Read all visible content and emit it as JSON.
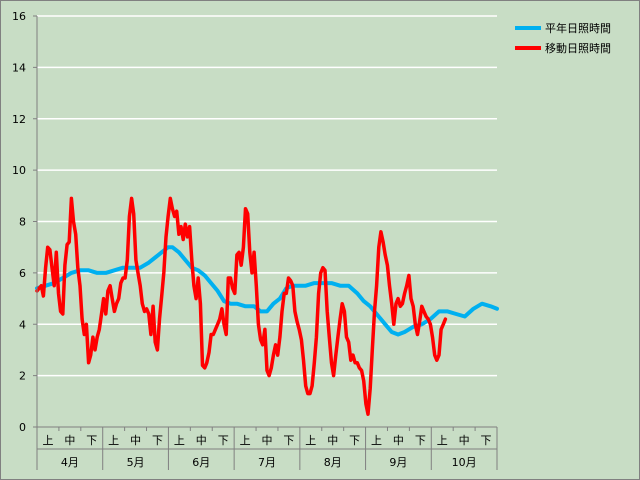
{
  "chart_data": {
    "type": "line",
    "title": "",
    "xlabel": "",
    "ylabel": "",
    "ylim": [
      0,
      16
    ],
    "yticks": [
      0,
      2,
      4,
      6,
      8,
      10,
      12,
      14,
      16
    ],
    "x_units": "days since Apr 1 (Apr 1 – Oct 31)",
    "xlim": [
      0,
      214
    ],
    "grid": true,
    "legend_position": "top-right",
    "periods": [
      "上",
      "中",
      "下"
    ],
    "months": [
      {
        "label": "4月",
        "days": 30
      },
      {
        "label": "5月",
        "days": 31
      },
      {
        "label": "6月",
        "days": 30
      },
      {
        "label": "7月",
        "days": 31
      },
      {
        "label": "8月",
        "days": 31
      },
      {
        "label": "9月",
        "days": 30
      },
      {
        "label": "10月",
        "days": 31
      }
    ],
    "series": [
      {
        "name": "平年日照時間",
        "color": "#00b0f0",
        "points": [
          [
            0,
            5.4
          ],
          [
            4,
            5.5
          ],
          [
            8,
            5.6
          ],
          [
            12,
            5.8
          ],
          [
            16,
            6.0
          ],
          [
            20,
            6.1
          ],
          [
            24,
            6.1
          ],
          [
            28,
            6.0
          ],
          [
            32,
            6.0
          ],
          [
            36,
            6.1
          ],
          [
            40,
            6.2
          ],
          [
            44,
            6.2
          ],
          [
            48,
            6.2
          ],
          [
            52,
            6.4
          ],
          [
            55,
            6.6
          ],
          [
            58,
            6.8
          ],
          [
            61,
            7.0
          ],
          [
            63,
            7.0
          ],
          [
            66,
            6.8
          ],
          [
            69,
            6.5
          ],
          [
            72,
            6.2
          ],
          [
            75,
            6.1
          ],
          [
            78,
            5.9
          ],
          [
            81,
            5.6
          ],
          [
            84,
            5.3
          ],
          [
            87,
            4.9
          ],
          [
            90,
            4.8
          ],
          [
            93,
            4.8
          ],
          [
            97,
            4.7
          ],
          [
            101,
            4.7
          ],
          [
            104,
            4.5
          ],
          [
            107,
            4.5
          ],
          [
            110,
            4.8
          ],
          [
            113,
            5.0
          ],
          [
            116,
            5.4
          ],
          [
            119,
            5.5
          ],
          [
            122,
            5.5
          ],
          [
            125,
            5.5
          ],
          [
            129,
            5.6
          ],
          [
            133,
            5.6
          ],
          [
            137,
            5.6
          ],
          [
            141,
            5.5
          ],
          [
            145,
            5.5
          ],
          [
            149,
            5.2
          ],
          [
            152,
            4.9
          ],
          [
            155,
            4.7
          ],
          [
            158,
            4.4
          ],
          [
            162,
            4.0
          ],
          [
            165,
            3.7
          ],
          [
            168,
            3.6
          ],
          [
            171,
            3.7
          ],
          [
            175,
            3.9
          ],
          [
            179,
            4.0
          ],
          [
            183,
            4.2
          ],
          [
            187,
            4.5
          ],
          [
            191,
            4.5
          ],
          [
            195,
            4.4
          ],
          [
            199,
            4.3
          ],
          [
            203,
            4.6
          ],
          [
            207,
            4.8
          ],
          [
            211,
            4.7
          ],
          [
            214,
            4.6
          ]
        ]
      },
      {
        "name": "移動日照時間",
        "color": "#ff0000",
        "points": [
          [
            0,
            5.3
          ],
          [
            1,
            5.4
          ],
          [
            2,
            5.5
          ],
          [
            3,
            5.1
          ],
          [
            4,
            6.2
          ],
          [
            5,
            7.0
          ],
          [
            6,
            6.9
          ],
          [
            7,
            6.2
          ],
          [
            8,
            5.5
          ],
          [
            9,
            6.8
          ],
          [
            10,
            5.2
          ],
          [
            11,
            4.5
          ],
          [
            12,
            4.4
          ],
          [
            13,
            6.3
          ],
          [
            14,
            7.1
          ],
          [
            15,
            7.2
          ],
          [
            16,
            8.9
          ],
          [
            17,
            8.0
          ],
          [
            18,
            7.5
          ],
          [
            19,
            6.2
          ],
          [
            20,
            5.5
          ],
          [
            21,
            4.2
          ],
          [
            22,
            3.6
          ],
          [
            23,
            4.0
          ],
          [
            24,
            2.5
          ],
          [
            25,
            2.8
          ],
          [
            26,
            3.5
          ],
          [
            27,
            3.0
          ],
          [
            28,
            3.5
          ],
          [
            29,
            3.8
          ],
          [
            30,
            4.4
          ],
          [
            31,
            5.0
          ],
          [
            32,
            4.4
          ],
          [
            33,
            5.3
          ],
          [
            34,
            5.5
          ],
          [
            35,
            5.0
          ],
          [
            36,
            4.5
          ],
          [
            37,
            4.8
          ],
          [
            38,
            5.0
          ],
          [
            39,
            5.6
          ],
          [
            40,
            5.8
          ],
          [
            41,
            5.8
          ],
          [
            42,
            6.5
          ],
          [
            43,
            8.2
          ],
          [
            44,
            8.9
          ],
          [
            45,
            8.3
          ],
          [
            46,
            6.5
          ],
          [
            47,
            6.0
          ],
          [
            48,
            5.5
          ],
          [
            49,
            4.8
          ],
          [
            50,
            4.5
          ],
          [
            51,
            4.6
          ],
          [
            52,
            4.4
          ],
          [
            53,
            3.6
          ],
          [
            54,
            4.7
          ],
          [
            55,
            3.3
          ],
          [
            56,
            3.0
          ],
          [
            57,
            4.2
          ],
          [
            58,
            5.1
          ],
          [
            59,
            6.0
          ],
          [
            60,
            7.4
          ],
          [
            61,
            8.2
          ],
          [
            62,
            8.9
          ],
          [
            63,
            8.5
          ],
          [
            64,
            8.2
          ],
          [
            65,
            8.4
          ],
          [
            66,
            7.5
          ],
          [
            67,
            7.8
          ],
          [
            68,
            7.3
          ],
          [
            69,
            7.9
          ],
          [
            70,
            7.4
          ],
          [
            71,
            7.8
          ],
          [
            72,
            6.5
          ],
          [
            73,
            5.5
          ],
          [
            74,
            5.0
          ],
          [
            75,
            5.8
          ],
          [
            76,
            4.8
          ],
          [
            77,
            2.4
          ],
          [
            78,
            2.3
          ],
          [
            79,
            2.5
          ],
          [
            80,
            2.9
          ],
          [
            81,
            3.6
          ],
          [
            82,
            3.6
          ],
          [
            83,
            3.8
          ],
          [
            84,
            4.0
          ],
          [
            85,
            4.2
          ],
          [
            86,
            4.6
          ],
          [
            87,
            4.0
          ],
          [
            88,
            3.6
          ],
          [
            89,
            5.8
          ],
          [
            90,
            5.8
          ],
          [
            91,
            5.4
          ],
          [
            92,
            5.2
          ],
          [
            93,
            6.7
          ],
          [
            94,
            6.8
          ],
          [
            95,
            6.3
          ],
          [
            96,
            7.0
          ],
          [
            97,
            8.5
          ],
          [
            98,
            8.3
          ],
          [
            99,
            6.8
          ],
          [
            100,
            6.0
          ],
          [
            101,
            6.8
          ],
          [
            102,
            5.5
          ],
          [
            103,
            4.0
          ],
          [
            104,
            3.4
          ],
          [
            105,
            3.2
          ],
          [
            106,
            3.8
          ],
          [
            107,
            2.2
          ],
          [
            108,
            2.0
          ],
          [
            109,
            2.3
          ],
          [
            110,
            2.8
          ],
          [
            111,
            3.2
          ],
          [
            112,
            2.8
          ],
          [
            113,
            3.5
          ],
          [
            114,
            4.5
          ],
          [
            115,
            5.2
          ],
          [
            116,
            5.2
          ],
          [
            117,
            5.8
          ],
          [
            118,
            5.7
          ],
          [
            119,
            5.5
          ],
          [
            120,
            4.5
          ],
          [
            121,
            4.1
          ],
          [
            122,
            3.8
          ],
          [
            123,
            3.4
          ],
          [
            124,
            2.6
          ],
          [
            125,
            1.6
          ],
          [
            126,
            1.3
          ],
          [
            127,
            1.3
          ],
          [
            128,
            1.6
          ],
          [
            129,
            2.5
          ],
          [
            130,
            3.5
          ],
          [
            131,
            5.2
          ],
          [
            132,
            6.0
          ],
          [
            133,
            6.2
          ],
          [
            134,
            6.1
          ],
          [
            135,
            4.5
          ],
          [
            136,
            3.5
          ],
          [
            137,
            2.5
          ],
          [
            138,
            2.0
          ],
          [
            139,
            2.8
          ],
          [
            140,
            3.5
          ],
          [
            141,
            4.2
          ],
          [
            142,
            4.8
          ],
          [
            143,
            4.5
          ],
          [
            144,
            3.5
          ],
          [
            145,
            3.3
          ],
          [
            146,
            2.6
          ],
          [
            147,
            2.8
          ],
          [
            148,
            2.5
          ],
          [
            149,
            2.5
          ],
          [
            150,
            2.3
          ],
          [
            151,
            2.2
          ],
          [
            152,
            1.8
          ],
          [
            153,
            0.9
          ],
          [
            154,
            0.5
          ],
          [
            155,
            1.5
          ],
          [
            156,
            3.0
          ],
          [
            157,
            4.5
          ],
          [
            158,
            5.5
          ],
          [
            159,
            7.0
          ],
          [
            160,
            7.6
          ],
          [
            161,
            7.2
          ],
          [
            162,
            6.7
          ],
          [
            163,
            6.3
          ],
          [
            164,
            5.5
          ],
          [
            165,
            4.8
          ],
          [
            166,
            4.0
          ],
          [
            167,
            4.8
          ],
          [
            168,
            5.0
          ],
          [
            169,
            4.7
          ],
          [
            170,
            4.8
          ],
          [
            171,
            5.2
          ],
          [
            172,
            5.5
          ],
          [
            173,
            5.9
          ],
          [
            174,
            5.0
          ],
          [
            175,
            4.7
          ],
          [
            176,
            4.0
          ],
          [
            177,
            3.6
          ],
          [
            178,
            4.1
          ],
          [
            179,
            4.7
          ],
          [
            180,
            4.5
          ],
          [
            181,
            4.3
          ],
          [
            182,
            4.2
          ],
          [
            183,
            4.0
          ],
          [
            184,
            3.5
          ],
          [
            185,
            2.8
          ],
          [
            186,
            2.6
          ],
          [
            187,
            2.8
          ],
          [
            188,
            3.8
          ],
          [
            189,
            4.0
          ],
          [
            190,
            4.2
          ]
        ]
      }
    ]
  }
}
